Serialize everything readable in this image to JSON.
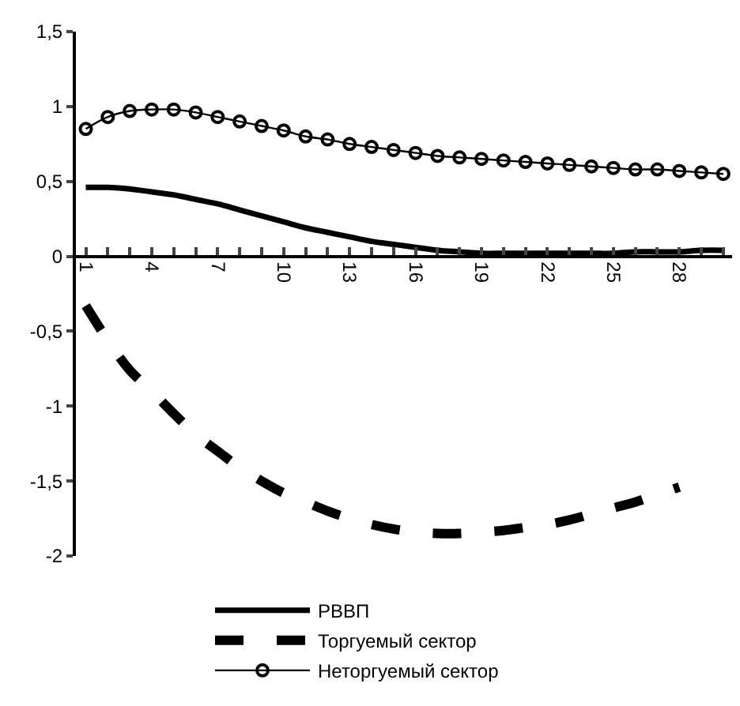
{
  "chart_data": {
    "type": "line",
    "categories": [
      "1",
      null,
      null,
      "4",
      null,
      null,
      "7",
      null,
      null,
      "10",
      null,
      null,
      "13",
      null,
      null,
      "16",
      null,
      null,
      "19",
      null,
      null,
      "22",
      null,
      null,
      "25",
      null,
      null,
      "28",
      null,
      null
    ],
    "series": [
      {
        "name": "РВВП",
        "color": "#000000",
        "line_style": "solid",
        "marker": "none",
        "values": [
          0.46,
          0.46,
          0.45,
          0.43,
          0.41,
          0.38,
          0.35,
          0.31,
          0.27,
          0.23,
          0.19,
          0.16,
          0.13,
          0.1,
          0.08,
          0.06,
          0.04,
          0.03,
          0.02,
          0.02,
          0.02,
          0.02,
          0.02,
          0.02,
          0.02,
          0.03,
          0.03,
          0.03,
          0.04,
          0.04
        ]
      },
      {
        "name": "Торгуемый сектор",
        "color": "#000000",
        "line_style": "dashed",
        "marker": "none",
        "values": [
          -0.33,
          -0.56,
          -0.76,
          -0.9,
          -1.05,
          -1.19,
          -1.3,
          -1.41,
          -1.5,
          -1.58,
          -1.64,
          -1.7,
          -1.75,
          -1.79,
          -1.82,
          -1.84,
          -1.85,
          -1.85,
          -1.84,
          -1.83,
          -1.81,
          -1.79,
          -1.76,
          -1.72,
          -1.68,
          -1.64,
          -1.59,
          -1.54,
          null,
          null
        ]
      },
      {
        "name": "Неторгуемый сектор",
        "color": "#000000",
        "line_style": "solid",
        "marker": "circle",
        "values": [
          0.85,
          0.93,
          0.97,
          0.98,
          0.98,
          0.96,
          0.93,
          0.9,
          0.87,
          0.84,
          0.8,
          0.78,
          0.75,
          0.73,
          0.71,
          0.69,
          0.67,
          0.66,
          0.65,
          0.64,
          0.63,
          0.62,
          0.61,
          0.6,
          0.59,
          0.58,
          0.58,
          0.57,
          0.56,
          0.55
        ]
      }
    ],
    "ylim": [
      -2,
      1.5
    ],
    "yticks": [
      {
        "value": -2,
        "label": "-2"
      },
      {
        "value": -1.5,
        "label": "-1,5"
      },
      {
        "value": -1,
        "label": "-1"
      },
      {
        "value": -0.5,
        "label": "-0,5"
      },
      {
        "value": 0,
        "label": "0"
      },
      {
        "value": 0.5,
        "label": "0,5"
      },
      {
        "value": 1,
        "label": "1"
      },
      {
        "value": 1.5,
        "label": "1,5"
      }
    ],
    "legend": "bottom"
  }
}
